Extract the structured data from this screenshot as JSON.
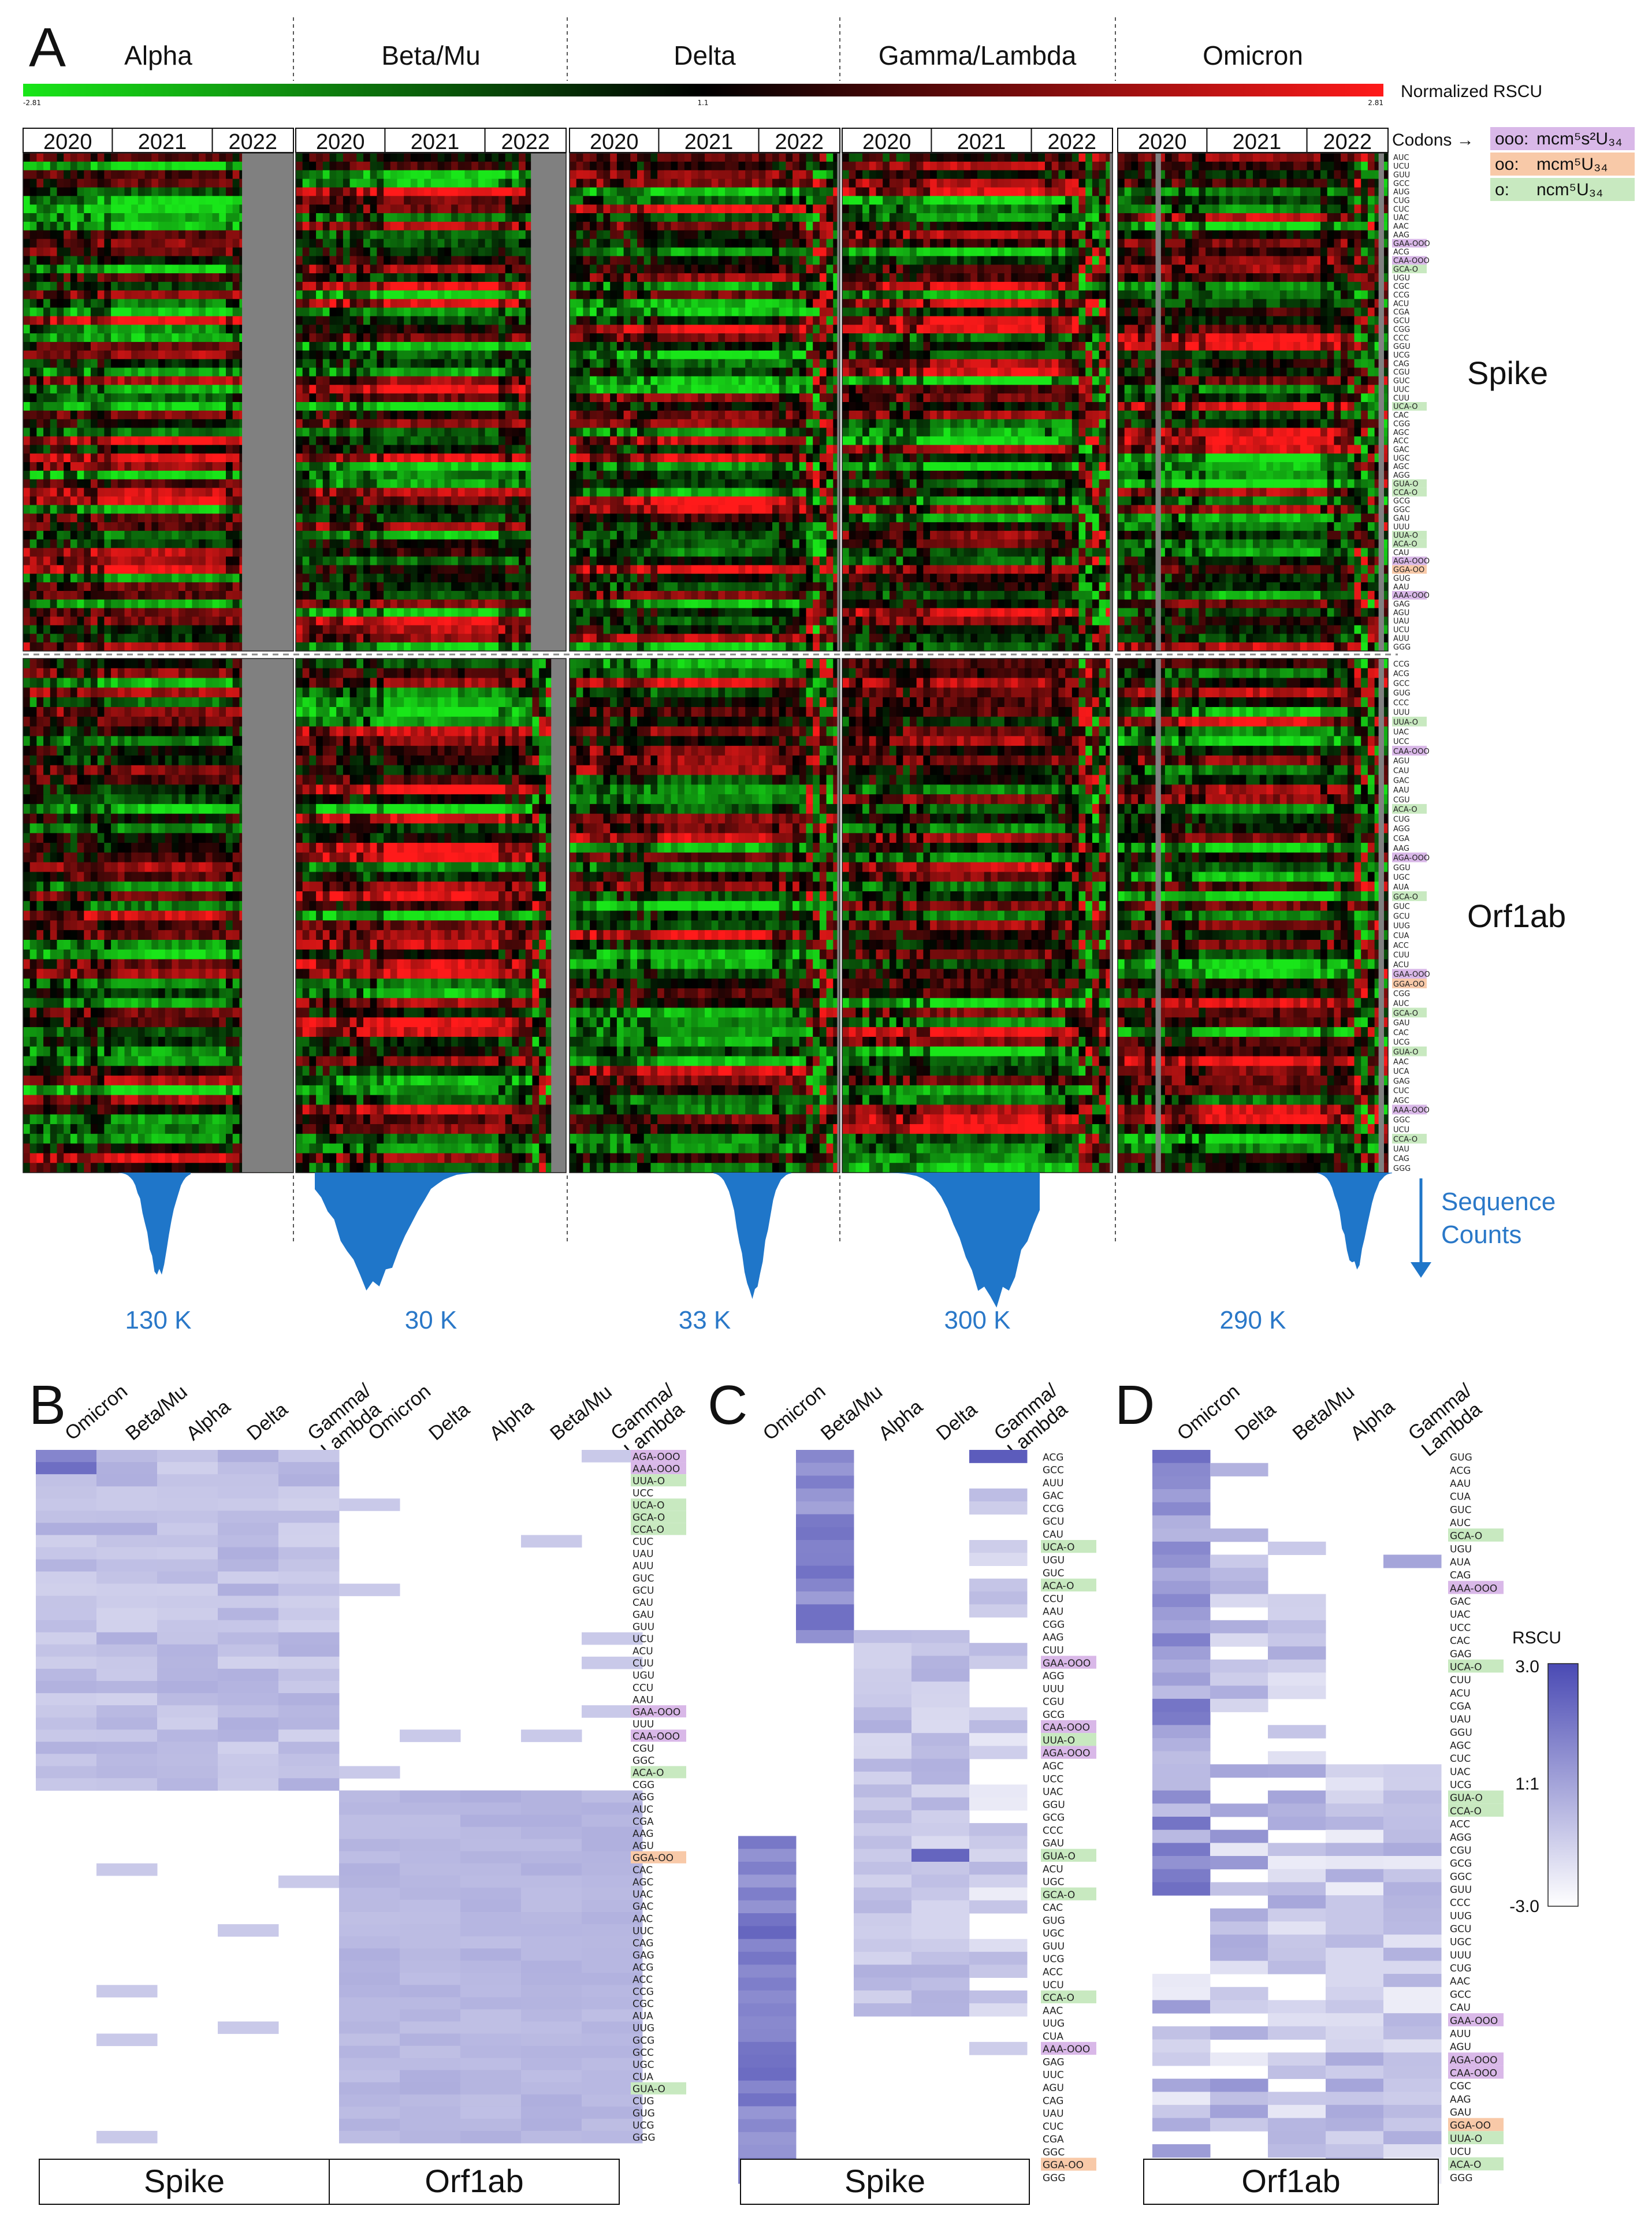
{
  "panel_letters": {
    "a": "A",
    "b": "B",
    "c": "C",
    "d": "D"
  },
  "colors": {
    "up": "#ff1a1a",
    "down": "#19e619",
    "mid": "#000000",
    "na": "#808080",
    "rscu_high": "#4a4ab4",
    "rscu_mid": "#ffffff",
    "seq": "#1f76c9",
    "tag_ooo": "#d9b8e8",
    "tag_oo": "#f8c9a8",
    "tag_o": "#c8e9c0"
  },
  "panelA": {
    "variants": [
      "Alpha",
      "Beta/Mu",
      "Delta",
      "Gamma/Lambda",
      "Omicron"
    ],
    "years": [
      "2020",
      "2021",
      "2022"
    ],
    "colorbar": {
      "label": "Normalized RSCU",
      "min": "-2.81",
      "mid": "1.1",
      "max": "2.81"
    },
    "codons_header": "Codons →",
    "tag_legend": [
      {
        "mark": "ooo:",
        "mod": "mcm⁵s²U₃₄"
      },
      {
        "mark": "oo:",
        "mod": "mcm⁵U₃₄"
      },
      {
        "mark": "o:",
        "mod": "ncm⁵U₃₄"
      }
    ],
    "genes": [
      "Spike",
      "Orf1ab"
    ],
    "spike_codons": [
      "AUC",
      "UCU",
      "GUU",
      "GCC",
      "AUG",
      "CUG",
      "CUC",
      "UAC",
      "AAC",
      "AAG",
      "GAA-OOO",
      "ACG",
      "CAA-OOO",
      "GCA-O",
      "UGU",
      "CGC",
      "CCG",
      "ACU",
      "CGA",
      "GCU",
      "CGG",
      "CCC",
      "GGU",
      "UCG",
      "CAG",
      "CGU",
      "GUC",
      "UUC",
      "CUU",
      "UCA-O",
      "CAC",
      "CGG",
      "AGC",
      "ACC",
      "GAC",
      "UGC",
      "AGC",
      "AGG",
      "GUA-O",
      "CCA-O",
      "GCG",
      "GGC",
      "GAU",
      "UUU",
      "UUA-O",
      "ACA-O",
      "CAU",
      "AGA-OOO",
      "GGA-OO",
      "GUG",
      "AAU",
      "AAA-OOO",
      "GAG",
      "AGU",
      "UAU",
      "UCU",
      "AUU",
      "GGG"
    ],
    "orf_codons": [
      "CCG",
      "ACG",
      "GCC",
      "GUG",
      "CCC",
      "UUU",
      "UUA-O",
      "UAC",
      "UCC",
      "CAA-OOO",
      "AGU",
      "CAU",
      "GAC",
      "AAU",
      "CGU",
      "ACA-O",
      "CUG",
      "AGG",
      "CGA",
      "AAG",
      "AGA-OOO",
      "GGU",
      "UGC",
      "AUA",
      "GCA-O",
      "GUC",
      "GCU",
      "UUG",
      "CUA",
      "ACC",
      "CUU",
      "ACU",
      "GAA-OOO",
      "GGA-OO",
      "CGG",
      "AUC",
      "GCA-O",
      "GAU",
      "CAC",
      "UCG",
      "GUA-O",
      "AAC",
      "UCA",
      "GAG",
      "CUC",
      "AGC",
      "AAA-OOO",
      "GGC",
      "UCU",
      "CCA-O",
      "UAU",
      "CAG",
      "GGG"
    ],
    "seq_counts_label": "Sequence Counts",
    "seq_counts": [
      "130 K",
      "30 K",
      "33 K",
      "300 K",
      "290 K"
    ]
  },
  "panelB": {
    "columns": [
      "Omicron",
      "Beta/Mu",
      "Alpha",
      "Delta",
      "Gamma/\nLambda",
      "Omicron",
      "Delta",
      "Alpha",
      "Beta/Mu",
      "Gamma/\nLambda"
    ],
    "codons": [
      "AGA-OOO",
      "AAA-OOO",
      "UUA-O",
      "UCC",
      "UCA-O",
      "GCA-O",
      "CCA-O",
      "CUC",
      "UAU",
      "AUU",
      "GUC",
      "GCU",
      "CAU",
      "GAU",
      "GUU",
      "UCU",
      "ACU",
      "CUU",
      "UGU",
      "CCU",
      "AAU",
      "GAA-OOO",
      "UUU",
      "CAA-OOO",
      "CGU",
      "GGC",
      "ACA-O",
      "CGG",
      "AGG",
      "AUC",
      "CGA",
      "AAG",
      "AGU",
      "GGA-OO",
      "CAC",
      "AGC",
      "UAC",
      "GAC",
      "AAC",
      "UUC",
      "CAG",
      "GAG",
      "ACG",
      "ACC",
      "CCG",
      "CGC",
      "AUA",
      "UUG",
      "GCG",
      "GCC",
      "UGC",
      "CUA",
      "GUA-O",
      "CUG",
      "GUG",
      "UCG",
      "GGG"
    ],
    "genes": [
      "Spike",
      "Orf1ab"
    ]
  },
  "panelC": {
    "columns": [
      "Omicron",
      "Beta/Mu",
      "Alpha",
      "Delta",
      "Gamma/\nLambda"
    ],
    "codons": [
      "ACG",
      "GCC",
      "AUU",
      "GAC",
      "CCG",
      "GCU",
      "CAU",
      "UCA-O",
      "UGU",
      "GUC",
      "ACA-O",
      "CCU",
      "AAU",
      "CGG",
      "AAG",
      "CUU",
      "GAA-OOO",
      "AGG",
      "UUU",
      "CGU",
      "GCG",
      "CAA-OOO",
      "UUA-O",
      "AGA-OOO",
      "AGC",
      "UCC",
      "UAC",
      "GGU",
      "GCG",
      "CCC",
      "GAU",
      "GUA-O",
      "ACU",
      "UGC",
      "GCA-O",
      "CAC",
      "GUG",
      "UGC",
      "GUU",
      "UCG",
      "ACC",
      "UCU",
      "CCA-O",
      "AAC",
      "UUG",
      "CUA",
      "AAA-OOO",
      "GAG",
      "UUC",
      "AGU",
      "CAG",
      "UAU",
      "CUC",
      "CGA",
      "GGC",
      "GGA-OO",
      "GGG"
    ],
    "gene": "Spike"
  },
  "panelD": {
    "columns": [
      "Omicron",
      "Delta",
      "Beta/Mu",
      "Alpha",
      "Gamma/\nLambda"
    ],
    "codons": [
      "GUG",
      "ACG",
      "AAU",
      "CUA",
      "GUC",
      "AUC",
      "GCA-O",
      "UGU",
      "AUA",
      "CAG",
      "AAA-OOO",
      "GAC",
      "UAC",
      "UCC",
      "CAC",
      "GAG",
      "UCA-O",
      "CUU",
      "ACU",
      "CGA",
      "UAU",
      "GGU",
      "AGC",
      "CUC",
      "UAC",
      "UCG",
      "GUA-O",
      "CCA-O",
      "ACC",
      "AGG",
      "CGU",
      "GCG",
      "GGC",
      "GUU",
      "CCC",
      "UUG",
      "GCU",
      "UGC",
      "UUU",
      "CUG",
      "AAC",
      "GCC",
      "CAU",
      "GAA-OOO",
      "AUU",
      "AGU",
      "AGA-OOO",
      "CAA-OOO",
      "CGC",
      "AAG",
      "GAU",
      "GGA-OO",
      "UUA-O",
      "UCU",
      "ACA-O",
      "GGG"
    ],
    "gene": "Orf1ab",
    "scale": {
      "label": "RSCU",
      "max": "3.0",
      "mid": "1:1",
      "min": "-3.0"
    }
  }
}
